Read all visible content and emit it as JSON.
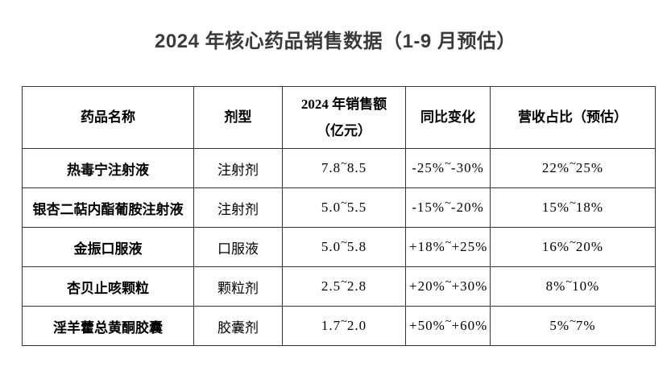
{
  "title": "2024 年核心药品销售数据（1-9 月预估）",
  "table": {
    "columns": [
      {
        "label": "药品名称"
      },
      {
        "label": "剂型"
      },
      {
        "label": "2024 年销售额",
        "label2": "（亿元）"
      },
      {
        "label": "同比变化"
      },
      {
        "label": "营收占比（预估）"
      }
    ],
    "rows": [
      {
        "name": "热毒宁注射液",
        "form": "注射剂",
        "sales": "7.8~8.5",
        "yoy": "-25%~-30%",
        "share": "22%~25%"
      },
      {
        "name": "银杏二萜内酯葡胺注射液",
        "form": "注射剂",
        "sales": "5.0~5.5",
        "yoy": "-15%~-20%",
        "share": "15%~18%"
      },
      {
        "name": "金振口服液",
        "form": "口服液",
        "sales": "5.0~5.8",
        "yoy": "+18%~+25%",
        "share": "16%~20%"
      },
      {
        "name": "杏贝止咳颗粒",
        "form": "颗粒剂",
        "sales": "2.5~2.8",
        "yoy": "+20%~+30%",
        "share": "8%~10%"
      },
      {
        "name": "淫羊藿总黄酮胶囊",
        "form": "胶囊剂",
        "sales": "1.7~2.0",
        "yoy": "+50%~+60%",
        "share": "5%~7%"
      }
    ]
  }
}
